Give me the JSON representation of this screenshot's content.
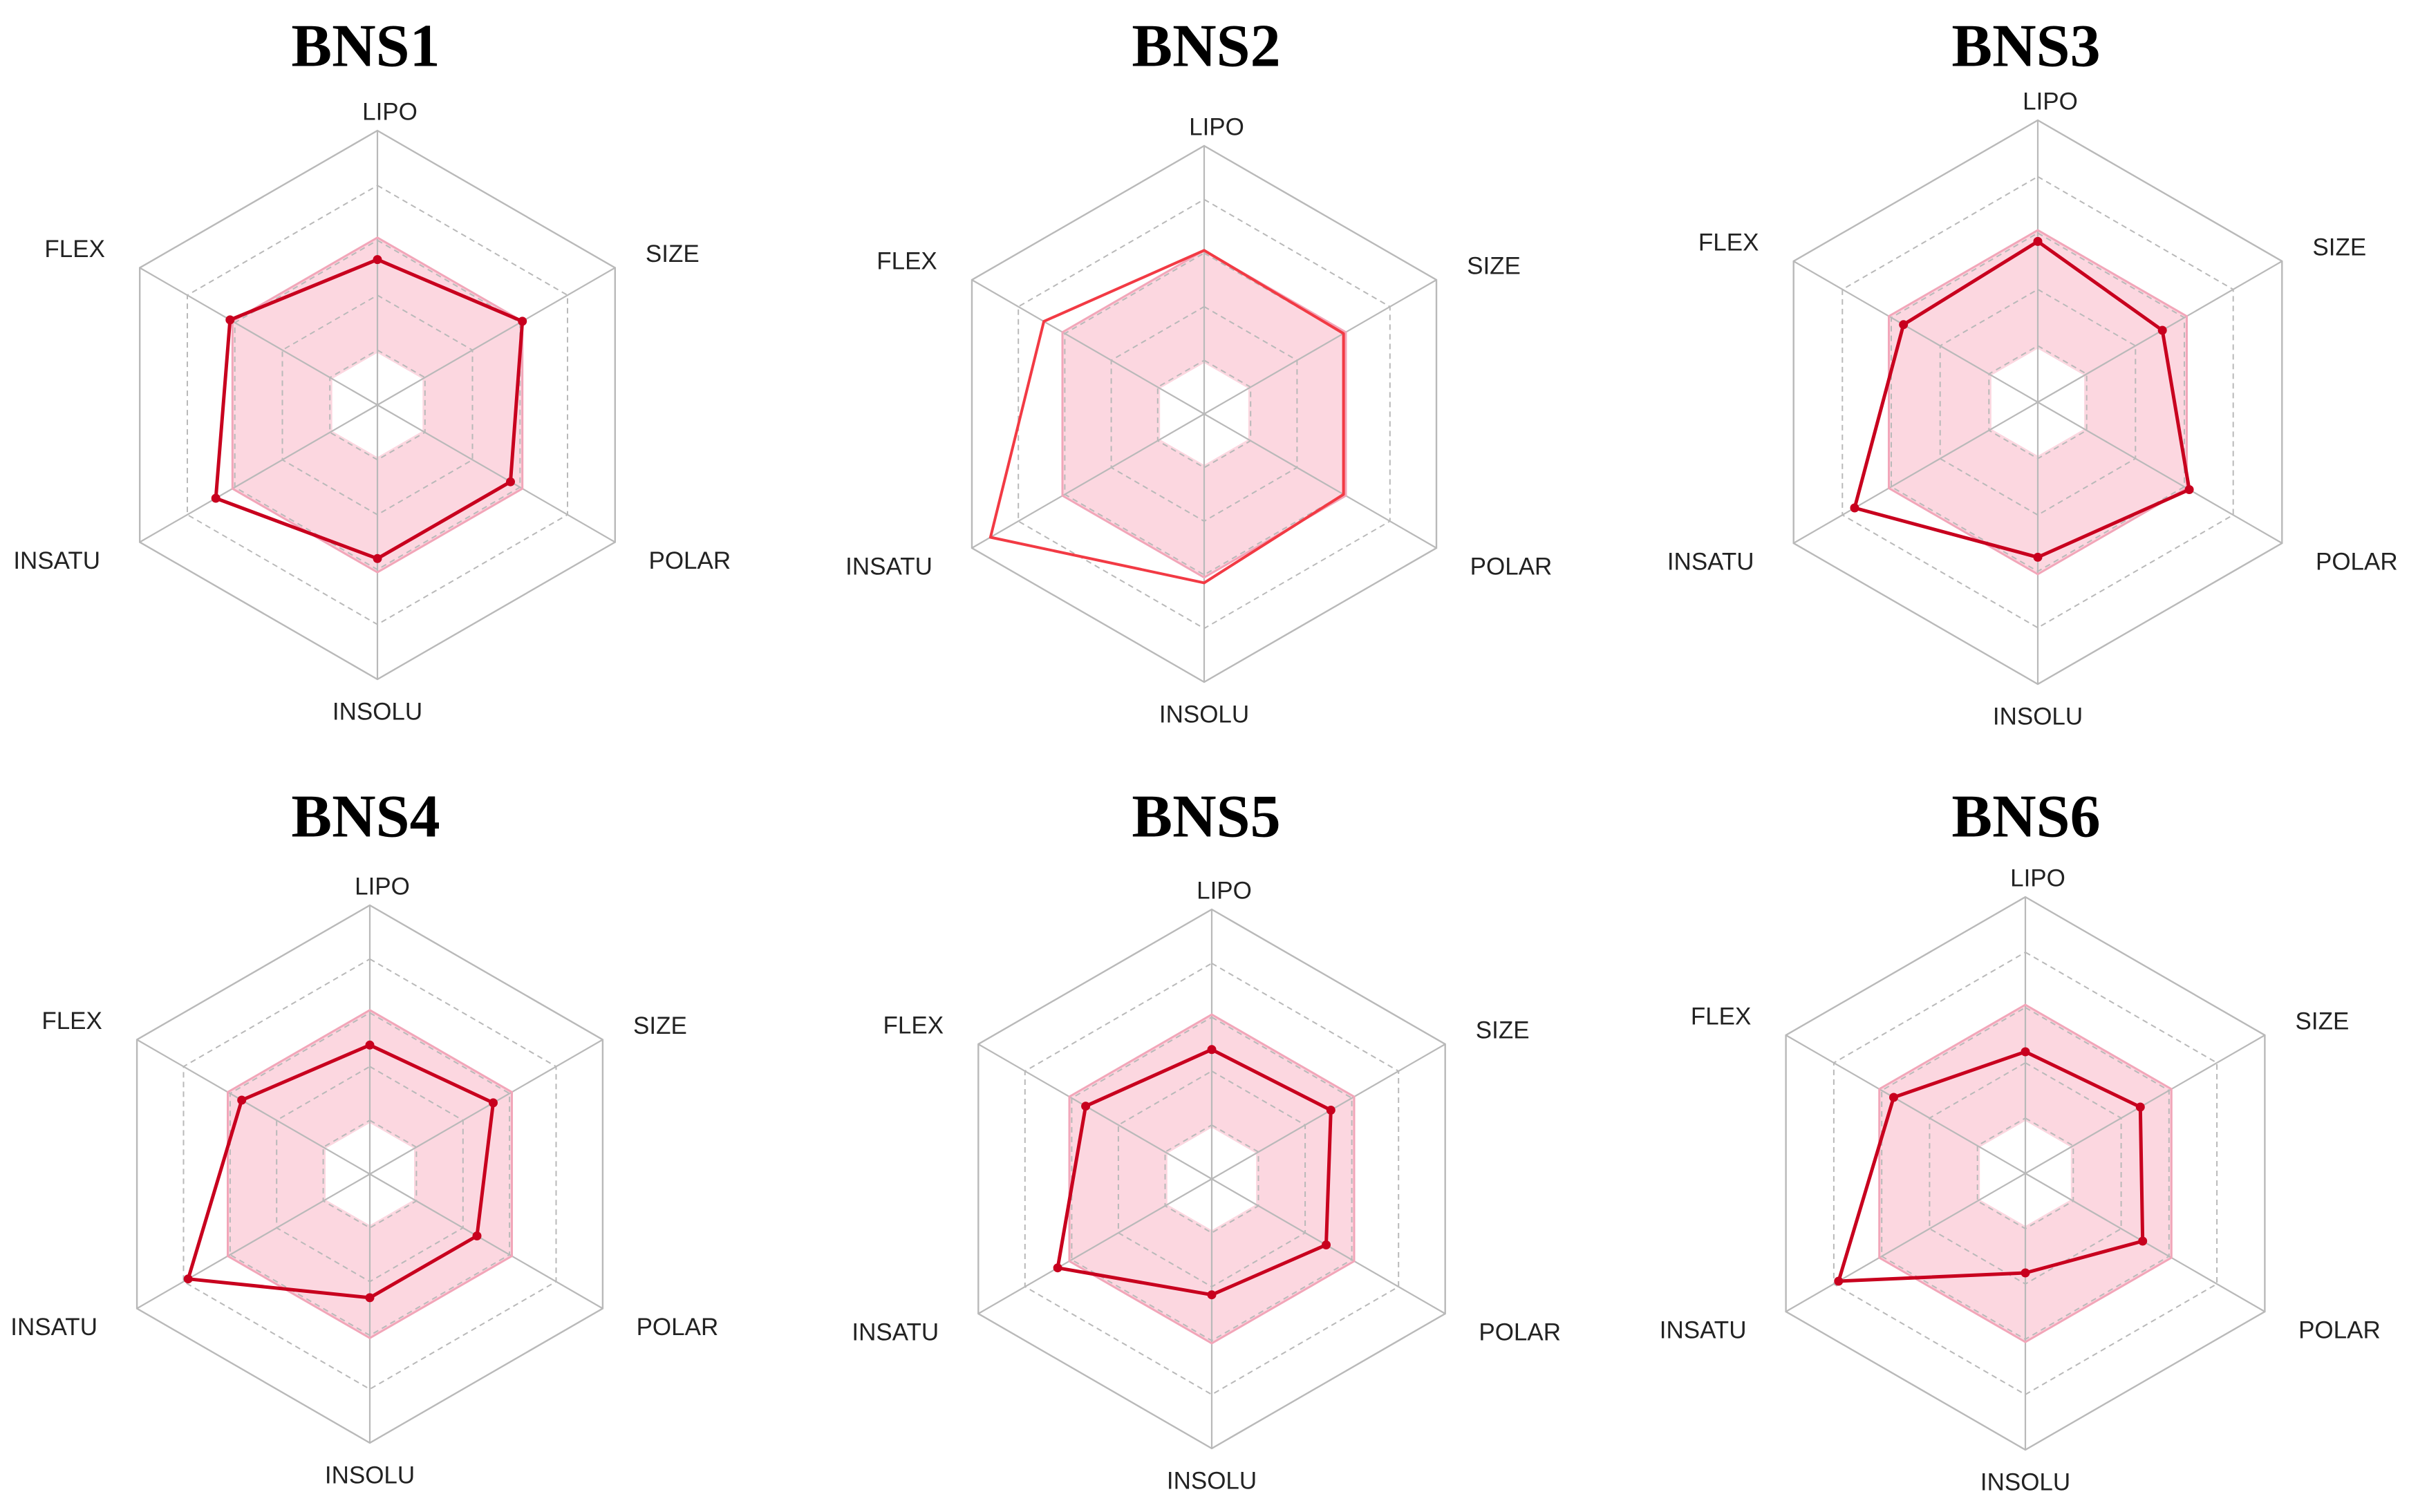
{
  "colors": {
    "background": "#ffffff",
    "optimal_zone_fill": "#fcd7e0",
    "optimal_zone_edge": "#f2a6b9",
    "grid": "#b9b9b9",
    "axis_label": "#222222"
  },
  "chart_data": [
    {
      "type": "radar",
      "title": "BNS1",
      "axes": [
        "LIPO",
        "SIZE",
        "POLAR",
        "INSOLU",
        "INSATU",
        "FLEX"
      ],
      "range": [
        0,
        1
      ],
      "grid": true,
      "optimal_zone": {
        "min": [
          0.19,
          0.19,
          0.19,
          0.19,
          0.19,
          0.19
        ],
        "max": [
          0.61,
          0.61,
          0.61,
          0.61,
          0.61,
          0.61
        ]
      },
      "series": [
        {
          "values": [
            0.53,
            0.61,
            0.56,
            0.56,
            0.68,
            0.62
          ],
          "color": "#c8001e",
          "markers": true
        }
      ]
    },
    {
      "type": "radar",
      "title": "BNS2",
      "axes": [
        "LIPO",
        "SIZE",
        "POLAR",
        "INSOLU",
        "INSATU",
        "FLEX"
      ],
      "range": [
        0,
        1
      ],
      "grid": true,
      "optimal_zone": {
        "min": [
          0.19,
          0.19,
          0.19,
          0.19,
          0.19,
          0.19
        ],
        "max": [
          0.61,
          0.61,
          0.61,
          0.61,
          0.61,
          0.61
        ]
      },
      "series": [
        {
          "values": [
            0.61,
            0.6,
            0.6,
            0.63,
            0.92,
            0.69
          ],
          "color": "#f23a44",
          "markers": false
        }
      ]
    },
    {
      "type": "radar",
      "title": "BNS3",
      "axes": [
        "LIPO",
        "SIZE",
        "POLAR",
        "INSOLU",
        "INSATU",
        "FLEX"
      ],
      "range": [
        0,
        1
      ],
      "grid": true,
      "optimal_zone": {
        "min": [
          0.19,
          0.19,
          0.19,
          0.19,
          0.19,
          0.19
        ],
        "max": [
          0.61,
          0.61,
          0.61,
          0.61,
          0.61,
          0.61
        ]
      },
      "series": [
        {
          "values": [
            0.57,
            0.51,
            0.62,
            0.55,
            0.75,
            0.55
          ],
          "color": "#c8001e",
          "markers": true
        }
      ]
    },
    {
      "type": "radar",
      "title": "BNS4",
      "axes": [
        "LIPO",
        "SIZE",
        "POLAR",
        "INSOLU",
        "INSATU",
        "FLEX"
      ],
      "range": [
        0,
        1
      ],
      "grid": true,
      "optimal_zone": {
        "min": [
          0.19,
          0.19,
          0.19,
          0.19,
          0.19,
          0.19
        ],
        "max": [
          0.61,
          0.61,
          0.61,
          0.61,
          0.61,
          0.61
        ]
      },
      "series": [
        {
          "values": [
            0.48,
            0.53,
            0.46,
            0.46,
            0.78,
            0.55
          ],
          "color": "#c8001e",
          "markers": true
        }
      ]
    },
    {
      "type": "radar",
      "title": "BNS5",
      "axes": [
        "LIPO",
        "SIZE",
        "POLAR",
        "INSOLU",
        "INSATU",
        "FLEX"
      ],
      "range": [
        0,
        1
      ],
      "grid": true,
      "optimal_zone": {
        "min": [
          0.19,
          0.19,
          0.19,
          0.19,
          0.19,
          0.19
        ],
        "max": [
          0.61,
          0.61,
          0.61,
          0.61,
          0.61,
          0.61
        ]
      },
      "series": [
        {
          "values": [
            0.48,
            0.51,
            0.49,
            0.43,
            0.66,
            0.54
          ],
          "color": "#c8001e",
          "markers": true
        }
      ]
    },
    {
      "type": "radar",
      "title": "BNS6",
      "axes": [
        "LIPO",
        "SIZE",
        "POLAR",
        "INSOLU",
        "INSATU",
        "FLEX"
      ],
      "range": [
        0,
        1
      ],
      "grid": true,
      "optimal_zone": {
        "min": [
          0.19,
          0.19,
          0.19,
          0.19,
          0.19,
          0.19
        ],
        "max": [
          0.61,
          0.61,
          0.61,
          0.61,
          0.61,
          0.61
        ]
      },
      "series": [
        {
          "values": [
            0.44,
            0.48,
            0.49,
            0.36,
            0.78,
            0.55
          ],
          "color": "#c8001e",
          "markers": true
        }
      ]
    }
  ]
}
